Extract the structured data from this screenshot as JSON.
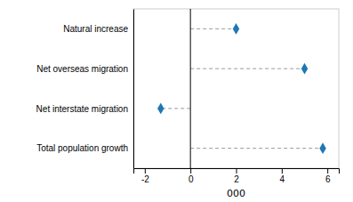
{
  "chart_data": {
    "type": "lollipop",
    "orientation": "horizontal",
    "categories": [
      "Natural increase",
      "Net overseas migration",
      "Net interstate migration",
      "Total population growth"
    ],
    "values": [
      2.0,
      5.0,
      -1.3,
      5.8
    ],
    "xlim": [
      -2.5,
      6.5
    ],
    "xticks": [
      -2,
      0,
      2,
      4,
      6
    ],
    "xlabel": "000",
    "marker": "diamond",
    "line_style": "dashed",
    "grid": false
  }
}
